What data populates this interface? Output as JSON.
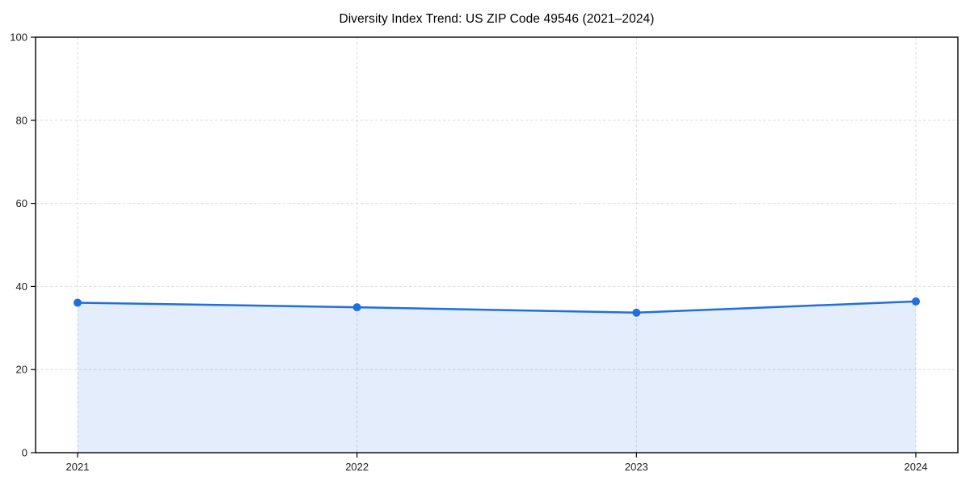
{
  "chart_data": {
    "type": "area",
    "title": "Diversity Index Trend: US ZIP Code 49546 (2021–2024)",
    "categories": [
      "2021",
      "2022",
      "2023",
      "2024"
    ],
    "series": [
      {
        "name": "Diversity Index",
        "values": [
          36.1,
          35.0,
          33.7,
          36.4
        ]
      }
    ],
    "xlabel": "",
    "ylabel": "",
    "ylim": [
      0,
      100
    ],
    "yticks": [
      0,
      20,
      40,
      60,
      80,
      100
    ],
    "grid": "dashed, horizontal and vertical",
    "legend": "none",
    "marker": "circle",
    "colors": {
      "line": "#1f6fe0",
      "marker": "#1f6fe0",
      "fill": "rgba(31,111,224,0.12)",
      "grid": "#dcdcdc",
      "axis": "#000000",
      "tick_text": "#1a1a1a",
      "title_text": "#000000",
      "background": "#ffffff"
    }
  }
}
